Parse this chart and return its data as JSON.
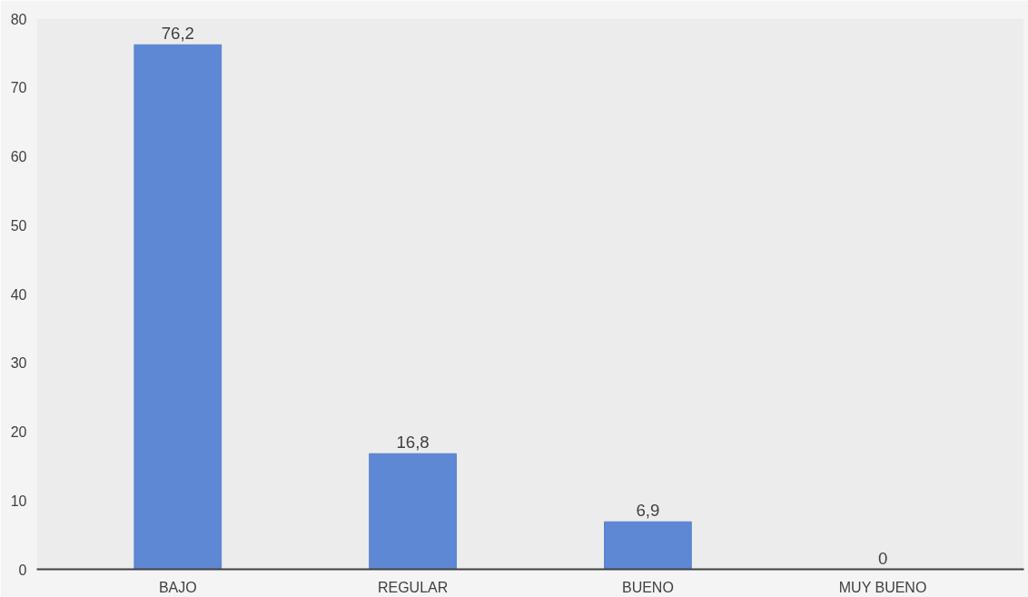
{
  "chart_data": {
    "type": "bar",
    "categories": [
      "BAJO",
      "REGULAR",
      "BUENO",
      "MUY BUENO"
    ],
    "values": [
      76.2,
      16.8,
      6.9,
      0
    ],
    "value_labels": [
      "76,2",
      "16,8",
      "6,9",
      "0"
    ],
    "color": "#5683d2",
    "ylim": [
      0,
      80
    ],
    "yticks": [
      0,
      10,
      20,
      30,
      40,
      50,
      60,
      70,
      80
    ],
    "grid": false
  }
}
